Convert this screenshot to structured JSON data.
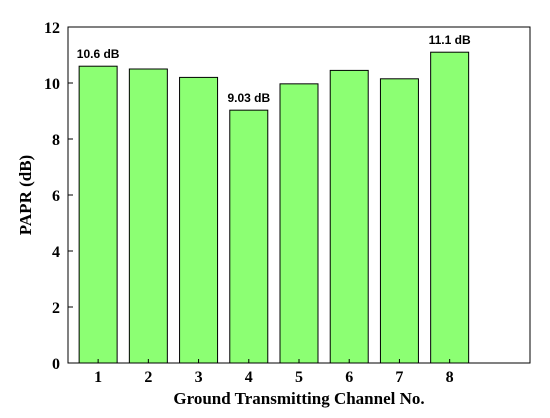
{
  "chart_data": {
    "type": "bar",
    "categories": [
      "1",
      "2",
      "3",
      "4",
      "5",
      "6",
      "7",
      "8"
    ],
    "values": [
      10.6,
      10.5,
      10.2,
      9.03,
      9.97,
      10.45,
      10.15,
      11.1
    ],
    "data_labels": [
      {
        "index": 0,
        "text": "10.6 dB"
      },
      {
        "index": 3,
        "text": "9.03 dB"
      },
      {
        "index": 7,
        "text": "11.1 dB"
      }
    ],
    "xlabel": "Ground Transmitting Channel No.",
    "ylabel": "PAPR (dB)",
    "ylim": [
      0,
      12
    ],
    "yticks": [
      0,
      2,
      4,
      6,
      8,
      10,
      12
    ],
    "xlim": [
      0.4,
      9.6
    ],
    "grid": false,
    "bar_color": "#8cff73",
    "bar_edge_color": "#000000"
  }
}
